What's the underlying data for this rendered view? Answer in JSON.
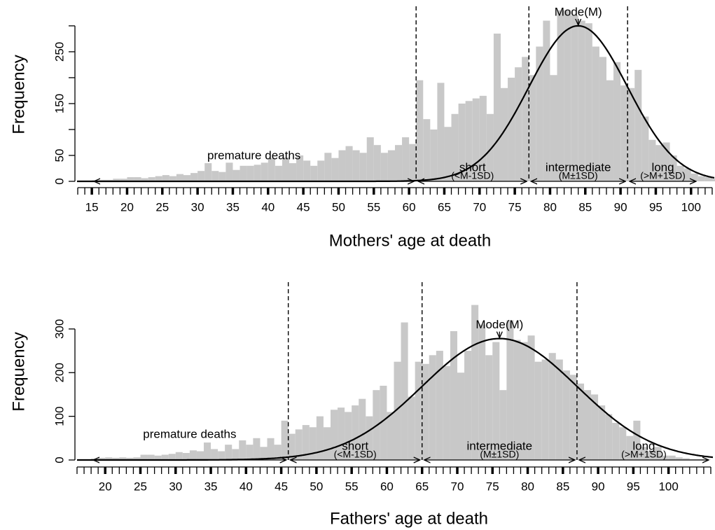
{
  "chart_data": [
    {
      "type": "histogram",
      "xlabel": "Mothers' age at death",
      "ylabel": "Frequency",
      "bins": [
        15,
        16,
        17,
        18,
        19,
        20,
        21,
        22,
        23,
        24,
        25,
        26,
        27,
        28,
        29,
        30,
        31,
        32,
        33,
        34,
        35,
        36,
        37,
        38,
        39,
        40,
        41,
        42,
        43,
        44,
        45,
        46,
        47,
        48,
        49,
        50,
        51,
        52,
        53,
        54,
        55,
        56,
        57,
        58,
        59,
        60,
        61,
        62,
        63,
        64,
        65,
        66,
        67,
        68,
        69,
        70,
        71,
        72,
        73,
        74,
        75,
        76,
        77,
        78,
        79,
        80,
        81,
        82,
        83,
        84,
        85,
        86,
        87,
        88,
        89,
        90,
        91,
        92,
        93,
        94,
        95,
        96,
        97,
        98,
        99,
        100,
        101,
        102,
        103,
        104
      ],
      "counts": [
        2,
        3,
        3,
        5,
        5,
        8,
        8,
        6,
        8,
        10,
        12,
        10,
        14,
        12,
        16,
        20,
        35,
        20,
        18,
        36,
        22,
        30,
        30,
        32,
        36,
        45,
        30,
        46,
        35,
        50,
        40,
        30,
        40,
        55,
        45,
        60,
        68,
        60,
        55,
        85,
        70,
        55,
        60,
        70,
        85,
        72,
        195,
        120,
        100,
        190,
        105,
        130,
        150,
        155,
        160,
        165,
        130,
        285,
        180,
        200,
        220,
        240,
        205,
        260,
        310,
        205,
        330,
        330,
        320,
        310,
        305,
        260,
        240,
        195,
        230,
        185,
        180,
        215,
        125,
        80,
        70,
        75,
        50,
        30,
        25,
        15,
        10,
        8,
        5
      ],
      "color": "#c8c8c8",
      "xlim": [
        12.9,
        103.4
      ],
      "ylim": [
        0,
        335
      ],
      "xticks": [
        15,
        20,
        25,
        30,
        35,
        40,
        45,
        50,
        55,
        60,
        65,
        70,
        75,
        80,
        85,
        90,
        95,
        100
      ],
      "xminor_step": 1,
      "yticks": [
        0,
        50,
        150,
        250
      ],
      "yminor": [
        100,
        200,
        300
      ],
      "vlines": [
        61,
        77,
        91
      ],
      "curve": {
        "mean": 84,
        "sd": 7,
        "peak": 300
      },
      "mode_label": "Mode(M)",
      "annotations": [
        {
          "text": "premature deaths",
          "from": 15,
          "to": 61
        },
        {
          "text": "short",
          "sub": "(<M-1SD)",
          "from": 61,
          "to": 77
        },
        {
          "text": "intermediate",
          "sub": "(M±1SD)",
          "from": 77,
          "to": 91
        },
        {
          "text": "long",
          "sub": "(>M+1SD)",
          "from": 91,
          "to": 101
        }
      ]
    },
    {
      "type": "histogram",
      "xlabel": "Fathers' age at death",
      "ylabel": "Frequency",
      "bins": [
        18,
        19,
        20,
        21,
        22,
        23,
        24,
        25,
        26,
        27,
        28,
        29,
        30,
        31,
        32,
        33,
        34,
        35,
        36,
        37,
        38,
        39,
        40,
        41,
        42,
        43,
        44,
        45,
        46,
        47,
        48,
        49,
        50,
        51,
        52,
        53,
        54,
        55,
        56,
        57,
        58,
        59,
        60,
        61,
        62,
        63,
        64,
        65,
        66,
        67,
        68,
        69,
        70,
        71,
        72,
        73,
        74,
        75,
        76,
        77,
        78,
        79,
        80,
        81,
        82,
        83,
        84,
        85,
        86,
        87,
        88,
        89,
        90,
        91,
        92,
        93,
        94,
        95,
        96,
        97,
        98,
        99,
        100,
        101,
        102,
        103,
        104,
        105,
        106
      ],
      "counts": [
        3,
        5,
        6,
        5,
        6,
        5,
        6,
        12,
        12,
        10,
        12,
        14,
        18,
        16,
        22,
        20,
        40,
        25,
        20,
        35,
        25,
        45,
        35,
        50,
        30,
        50,
        35,
        90,
        60,
        70,
        80,
        75,
        100,
        75,
        115,
        120,
        110,
        125,
        140,
        100,
        160,
        170,
        110,
        225,
        315,
        145,
        225,
        220,
        240,
        250,
        215,
        295,
        200,
        250,
        355,
        310,
        240,
        270,
        160,
        320,
        275,
        270,
        285,
        225,
        230,
        245,
        230,
        205,
        195,
        175,
        160,
        150,
        125,
        105,
        85,
        75,
        55,
        90,
        30,
        20,
        30,
        10,
        10,
        6,
        4,
        2,
        2,
        1
      ],
      "color": "#c8c8c8",
      "xlim": [
        16,
        106.3
      ],
      "ylim": [
        0,
        404
      ],
      "xticks": [
        20,
        25,
        30,
        35,
        40,
        45,
        50,
        55,
        60,
        65,
        70,
        75,
        80,
        85,
        90,
        95,
        100
      ],
      "xminor_step": 1,
      "yticks": [
        0,
        100,
        200,
        300
      ],
      "yminor": [],
      "vlines": [
        46,
        65,
        87
      ],
      "curve": {
        "mean": 76,
        "sd": 11,
        "peak": 278
      },
      "mode_label": "Mode(M)",
      "annotations": [
        {
          "text": "premature deaths",
          "from": 18,
          "to": 46
        },
        {
          "text": "short",
          "sub": "(<M-1SD)",
          "from": 46,
          "to": 65
        },
        {
          "text": "intermediate",
          "sub": "(M±1SD)",
          "from": 65,
          "to": 87
        },
        {
          "text": "long",
          "sub": "(>M+1SD)",
          "from": 87,
          "to": 106
        }
      ]
    }
  ]
}
